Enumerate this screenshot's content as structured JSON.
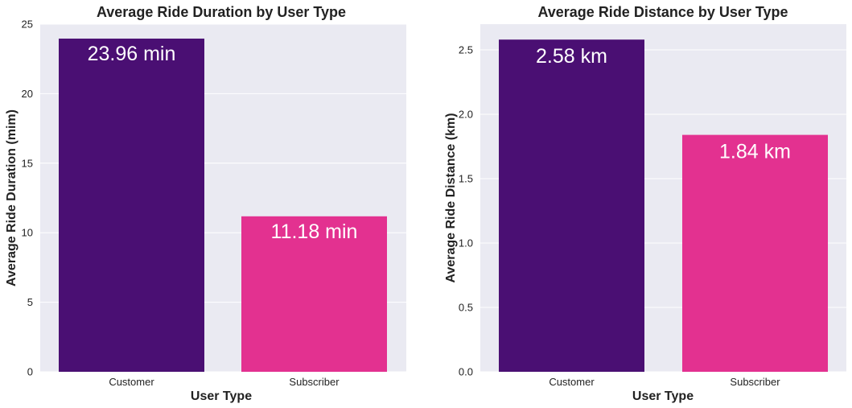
{
  "chart_data": [
    {
      "type": "bar",
      "title": "Average Ride Duration by User Type",
      "xlabel": "User Type",
      "ylabel": "Average Ride Duration (mim)",
      "categories": [
        "Customer",
        "Subscriber"
      ],
      "values": [
        23.96,
        11.18
      ],
      "bar_labels": [
        "23.96 min",
        "11.18 min"
      ],
      "ylim": [
        0,
        25
      ],
      "yticks": [
        0,
        5,
        10,
        15,
        20,
        25
      ],
      "ytick_labels": [
        "0",
        "5",
        "10",
        "15",
        "20",
        "25"
      ],
      "colors": [
        "#4a0f73",
        "#e33190"
      ],
      "grid": true,
      "background": "#eaeaf2"
    },
    {
      "type": "bar",
      "title": "Average Ride Distance by User Type",
      "xlabel": "User Type",
      "ylabel": "Average Ride Distance (km)",
      "categories": [
        "Customer",
        "Subscriber"
      ],
      "values": [
        2.58,
        1.84
      ],
      "bar_labels": [
        "2.58 km",
        "1.84 km"
      ],
      "ylim": [
        0,
        2.7
      ],
      "yticks": [
        0,
        0.5,
        1.0,
        1.5,
        2.0,
        2.5
      ],
      "ytick_labels": [
        "0.0",
        "0.5",
        "1.0",
        "1.5",
        "2.0",
        "2.5"
      ],
      "colors": [
        "#4a0f73",
        "#e33190"
      ],
      "grid": true,
      "background": "#eaeaf2"
    }
  ]
}
